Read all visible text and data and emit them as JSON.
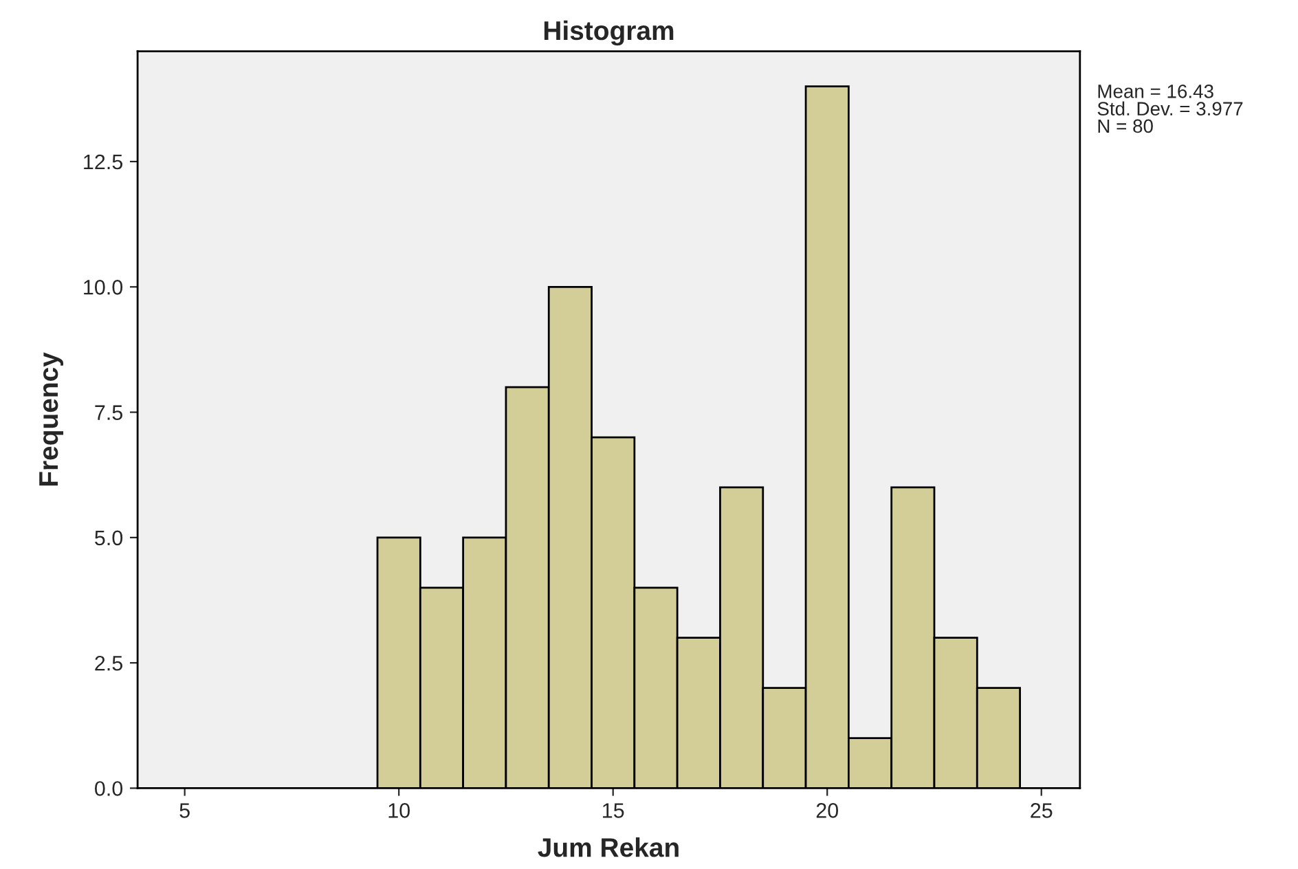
{
  "chart_data": {
    "type": "histogram",
    "title": "Histogram",
    "xlabel": "Jum Rekan",
    "ylabel": "Frequency",
    "bins": [
      9.5,
      10.5,
      11.5,
      12.5,
      13.5,
      14.5,
      15.5,
      16.5,
      17.5,
      18.5,
      19.5,
      20.5,
      21.5,
      22.5,
      23.5,
      24.5
    ],
    "values": [
      5,
      4,
      5,
      8,
      10,
      7,
      4,
      3,
      6,
      2,
      14,
      1,
      6,
      3,
      2
    ],
    "color": "#d3ce97",
    "xlim": [
      3.9,
      25.9
    ],
    "xticks": [
      5,
      10,
      15,
      20,
      25
    ],
    "ylim": [
      0,
      14.7
    ],
    "yticks": [
      {
        "value": 0,
        "label": "0.0"
      },
      {
        "value": 2.5,
        "label": "2.5"
      },
      {
        "value": 5,
        "label": "5.0"
      },
      {
        "value": 7.5,
        "label": "7.5"
      },
      {
        "value": 10,
        "label": "10.0"
      },
      {
        "value": 12.5,
        "label": "12.5"
      }
    ],
    "grid": false,
    "annotations": [
      "Mean = 16.43",
      "Std. Dev. = 3.977",
      "N = 80"
    ]
  }
}
